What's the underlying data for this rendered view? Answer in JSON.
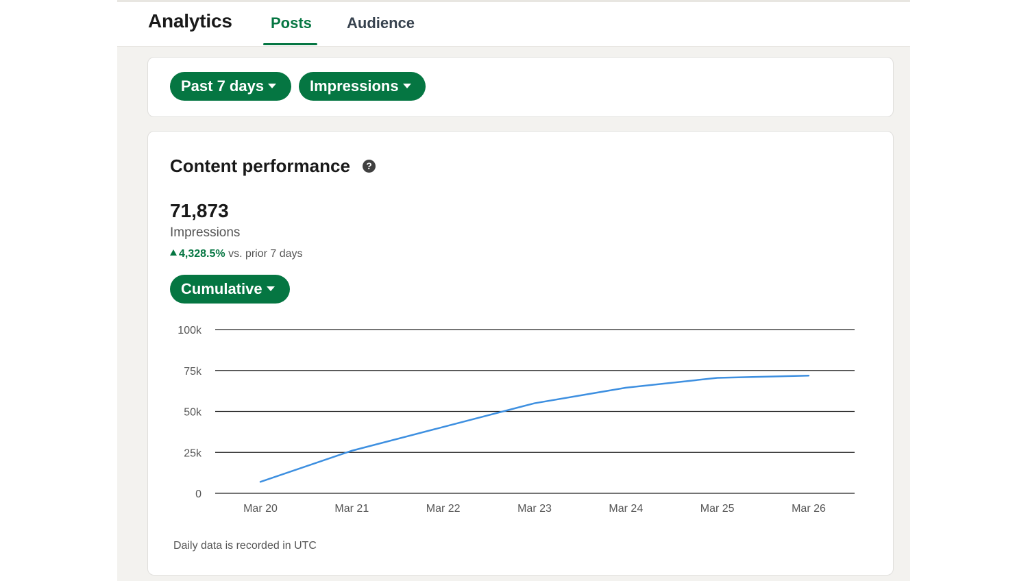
{
  "header": {
    "title": "Analytics",
    "tabs": [
      {
        "label": "Posts",
        "selected": true
      },
      {
        "label": "Audience",
        "selected": false
      }
    ]
  },
  "filters": {
    "range_label": "Past 7 days",
    "metric_label": "Impressions"
  },
  "performance": {
    "title": "Content performance",
    "help_icon": "question-circle-icon",
    "value": "71,873",
    "value_label": "Impressions",
    "delta_pct": "4,328.5%",
    "delta_text": "vs. prior 7 days",
    "mode_label": "Cumulative",
    "footnote": "Daily data is recorded in UTC"
  },
  "colors": {
    "accent": "#057642",
    "line": "#3d8fe0"
  },
  "chart_data": {
    "type": "line",
    "categories": [
      "Mar 20",
      "Mar 21",
      "Mar 22",
      "Mar 23",
      "Mar 24",
      "Mar 25",
      "Mar 26"
    ],
    "series": [
      {
        "values": [
          7000,
          26000,
          40500,
          55000,
          64500,
          70500,
          71873
        ]
      }
    ],
    "yticks": [
      {
        "value": 0,
        "label": "0"
      },
      {
        "value": 25000,
        "label": "25k"
      },
      {
        "value": 50000,
        "label": "50k"
      },
      {
        "value": 75000,
        "label": "75k"
      },
      {
        "value": 100000,
        "label": "100k"
      }
    ],
    "ylim": [
      0,
      100000
    ],
    "grid": true,
    "title": "",
    "xlabel": "",
    "ylabel": ""
  }
}
